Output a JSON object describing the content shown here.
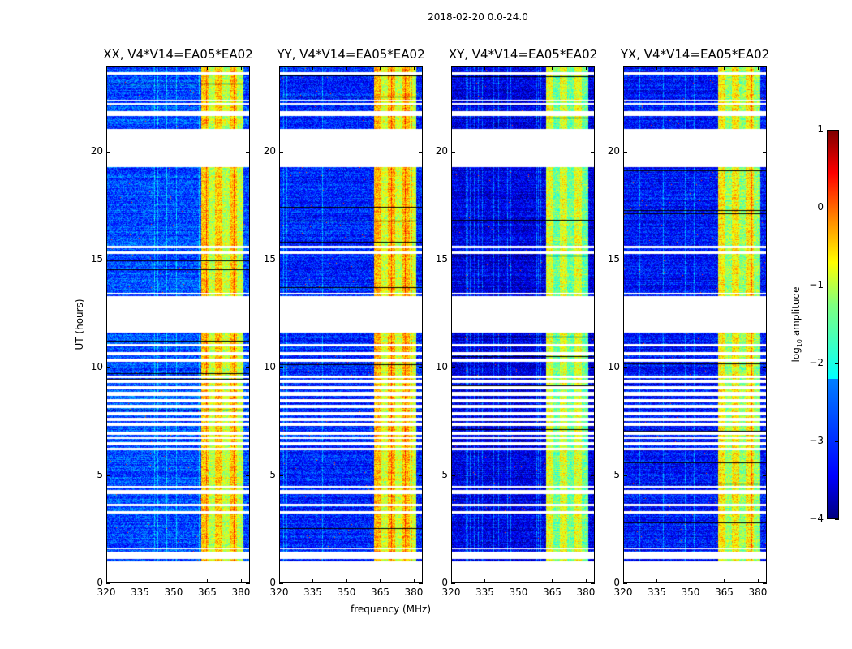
{
  "suptitle": "2018-02-20 0.0-24.0",
  "chart_data": {
    "type": "heatmap",
    "title": "2018-02-20 0.0-24.0",
    "xlabel": "frequency (MHz)",
    "ylabel": "UT (hours)",
    "xlim": [
      320,
      384
    ],
    "ylim": [
      0,
      24
    ],
    "xticks": [
      320,
      335,
      350,
      365,
      380
    ],
    "yticks": [
      0,
      5,
      10,
      15,
      20
    ],
    "colormap": "jet",
    "panels": [
      {
        "title": "XX, V4*V14=EA05*EA02",
        "baseline_log_amp": -3.0,
        "band_log_amp": -0.6
      },
      {
        "title": "YY, V4*V14=EA05*EA02",
        "baseline_log_amp": -3.2,
        "band_log_amp": -0.5
      },
      {
        "title": "XY, V4*V14=EA05*EA02",
        "baseline_log_amp": -3.5,
        "band_log_amp": -1.0
      },
      {
        "title": "YX, V4*V14=EA05*EA02",
        "baseline_log_amp": -3.3,
        "band_log_amp": -0.8
      }
    ],
    "bright_band_mhz": [
      362,
      381
    ],
    "valid_time_segments_hours": [
      [
        1.05,
        1.15
      ],
      [
        1.5,
        1.6
      ],
      [
        1.65,
        3.25
      ],
      [
        3.35,
        3.6
      ],
      [
        3.7,
        4.15
      ],
      [
        4.35,
        4.45
      ],
      [
        4.55,
        6.2
      ],
      [
        6.3,
        6.4
      ],
      [
        6.55,
        6.7
      ],
      [
        6.8,
        6.9
      ],
      [
        7.05,
        7.3
      ],
      [
        7.45,
        7.55
      ],
      [
        7.7,
        7.8
      ],
      [
        7.95,
        8.15
      ],
      [
        8.3,
        8.4
      ],
      [
        8.55,
        8.7
      ],
      [
        8.9,
        9.0
      ],
      [
        9.15,
        9.3
      ],
      [
        9.45,
        9.55
      ],
      [
        9.65,
        10.3
      ],
      [
        10.45,
        10.6
      ],
      [
        10.75,
        11.0
      ],
      [
        11.1,
        11.65
      ],
      [
        13.35,
        13.4
      ],
      [
        13.5,
        15.3
      ],
      [
        15.4,
        15.55
      ],
      [
        15.65,
        19.3
      ],
      [
        21.1,
        21.7
      ],
      [
        21.9,
        22.2
      ],
      [
        22.3,
        22.4
      ],
      [
        22.45,
        23.6
      ],
      [
        23.7,
        24.0
      ]
    ],
    "colorbar": {
      "label_main": "log",
      "label_sub": "10",
      "label_rest": " amplitude",
      "range": [
        -4,
        1
      ],
      "ticks": [
        1,
        0,
        -1,
        -2,
        -3,
        -4
      ]
    }
  }
}
